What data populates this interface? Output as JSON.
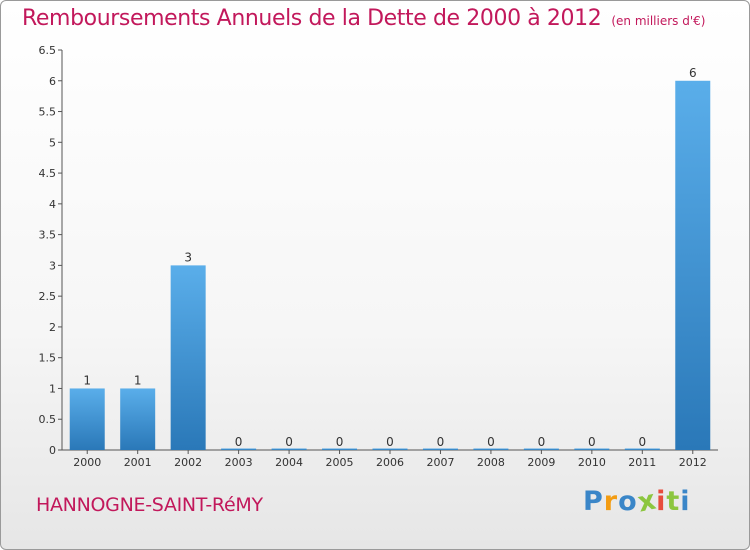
{
  "chart_data": {
    "type": "bar",
    "title": "Remboursements Annuels de la Dette de 2000 à 2012",
    "subtitle": "(en milliers d'€)",
    "categories": [
      "2000",
      "2001",
      "2002",
      "2003",
      "2004",
      "2005",
      "2006",
      "2007",
      "2008",
      "2009",
      "2010",
      "2011",
      "2012"
    ],
    "values": [
      1,
      1,
      3,
      0,
      0,
      0,
      0,
      0,
      0,
      0,
      0,
      0,
      6
    ],
    "data_labels": [
      "1",
      "1",
      "3",
      "0",
      "0",
      "0",
      "0",
      "0",
      "0",
      "0",
      "0",
      "0",
      "6"
    ],
    "yticks": [
      "0",
      "0.5",
      "1",
      "1.5",
      "2",
      "2.5",
      "3",
      "3.5",
      "4",
      "4.5",
      "5",
      "5.5",
      "6",
      "6.5"
    ],
    "ylim": [
      0,
      6.5
    ],
    "xlabel": "",
    "ylabel": "",
    "bar_color": "#3a8fd6"
  },
  "footer": {
    "town": "HANNOGNE-SAINT-RéMY",
    "logo_letters": [
      "P",
      "r",
      "o",
      "x",
      "i",
      "t",
      "i"
    ],
    "logo_colors": [
      "#3a86c8",
      "#f39c12",
      "#3a86c8",
      "#8cc63f",
      "#e74c3c",
      "#8cc63f",
      "#3a86c8"
    ]
  }
}
